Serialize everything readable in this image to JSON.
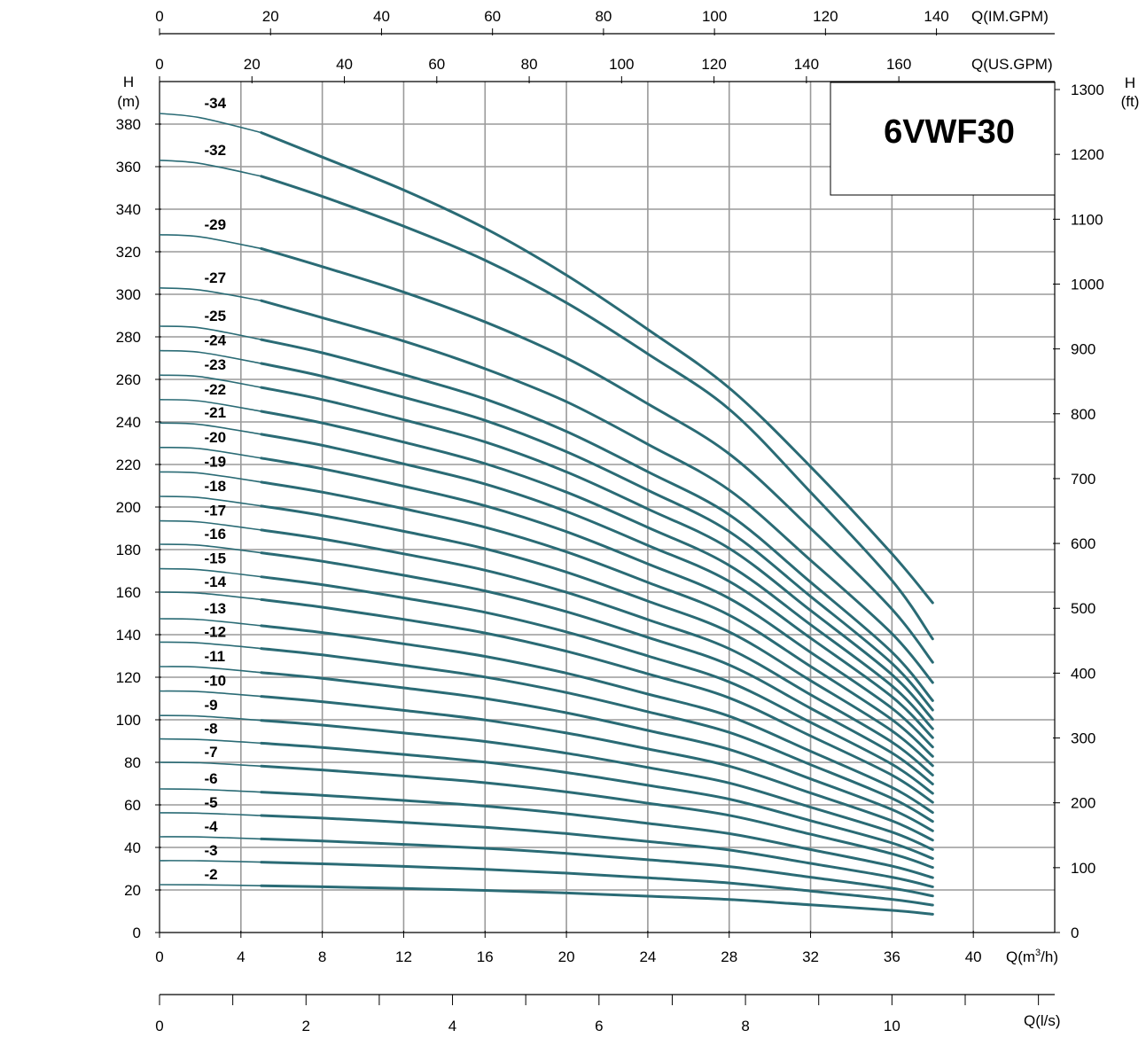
{
  "chart_data": {
    "type": "line",
    "title": "6VWF30",
    "xlabel": "Q(m3/h)",
    "ylabel": "H (m)",
    "ylabel_right": "H (ft)",
    "xlim": [
      0,
      44
    ],
    "ylim": [
      0,
      400
    ],
    "x_ticks": [
      0,
      4,
      8,
      12,
      16,
      20,
      24,
      28,
      32,
      36,
      40
    ],
    "y_ticks": [
      0,
      20,
      40,
      60,
      80,
      100,
      120,
      140,
      160,
      180,
      200,
      220,
      240,
      260,
      280,
      300,
      320,
      340,
      360,
      380
    ],
    "secondary_axes": {
      "right_ft": {
        "label_top": "H",
        "label_bottom": "(ft)",
        "ticks": [
          0,
          100,
          200,
          300,
          400,
          500,
          600,
          700,
          800,
          900,
          1000,
          1100,
          1200,
          1300
        ]
      },
      "top_us_gpm": {
        "label": "Q(US.GPM)",
        "ticks": [
          0,
          20,
          40,
          60,
          80,
          100,
          120,
          140,
          160
        ]
      },
      "top_im_gpm": {
        "label": "Q(IM.GPM)",
        "ticks": [
          0,
          20,
          40,
          60,
          80,
          100,
          120,
          140
        ]
      },
      "bottom_ls": {
        "label": "Q(l/s)",
        "ticks": [
          0,
          2,
          4,
          6,
          8,
          10
        ]
      }
    },
    "grid": true,
    "line_color": "#2a6b75",
    "x": [
      0,
      2,
      5,
      8,
      12,
      16,
      20,
      24,
      28,
      32,
      36,
      38
    ],
    "series": [
      {
        "name": "-2",
        "shutoff": 22.5,
        "values": [
          22.5,
          22.4,
          22.0,
          21.5,
          20.7,
          19.8,
          18.6,
          17.1,
          15.5,
          13.0,
          10.4,
          8.6
        ]
      },
      {
        "name": "-3",
        "shutoff": 33.8,
        "values": [
          33.8,
          33.7,
          33.1,
          32.3,
          31.1,
          29.7,
          27.9,
          25.7,
          23.3,
          19.5,
          15.6,
          12.9
        ]
      },
      {
        "name": "-4",
        "shutoff": 45.0,
        "values": [
          45.0,
          44.9,
          44.0,
          43.0,
          41.4,
          39.6,
          37.2,
          34.2,
          31.0,
          26.0,
          20.8,
          17.2
        ]
      },
      {
        "name": "-5",
        "shutoff": 56.3,
        "values": [
          56.3,
          56.1,
          55.0,
          53.8,
          51.8,
          49.5,
          46.5,
          42.8,
          38.8,
          32.5,
          26.0,
          21.5
        ]
      },
      {
        "name": "-6",
        "shutoff": 67.5,
        "values": [
          67.5,
          67.3,
          66.0,
          64.5,
          62.1,
          59.4,
          55.8,
          51.3,
          46.5,
          39.0,
          31.2,
          25.8
        ]
      },
      {
        "name": "-7",
        "shutoff": 80.0,
        "values": [
          80.0,
          79.8,
          78.2,
          76.4,
          73.6,
          70.4,
          66.1,
          60.8,
          55.1,
          46.2,
          37.0,
          30.6
        ]
      },
      {
        "name": "-8",
        "shutoff": 91.0,
        "values": [
          91.0,
          90.7,
          89.0,
          87.0,
          83.7,
          80.1,
          75.2,
          69.2,
          62.7,
          52.6,
          42.1,
          34.8
        ]
      },
      {
        "name": "-9",
        "shutoff": 102.0,
        "values": [
          102.0,
          101.7,
          99.7,
          97.5,
          93.8,
          89.8,
          84.3,
          77.6,
          70.3,
          58.9,
          47.2,
          39.0
        ]
      },
      {
        "name": "-10",
        "shutoff": 113.5,
        "values": [
          113.5,
          113.2,
          111.0,
          108.5,
          104.4,
          99.9,
          93.8,
          86.3,
          78.2,
          65.6,
          52.5,
          43.4
        ]
      },
      {
        "name": "-11",
        "shutoff": 125.0,
        "values": [
          125.0,
          124.7,
          122.2,
          119.5,
          115.0,
          110.0,
          103.3,
          95.0,
          86.1,
          72.2,
          57.8,
          47.8
        ]
      },
      {
        "name": "-12",
        "shutoff": 136.5,
        "values": [
          136.5,
          136.1,
          133.5,
          130.5,
          125.6,
          120.1,
          112.8,
          103.8,
          94.1,
          78.9,
          63.1,
          52.2
        ]
      },
      {
        "name": "-13",
        "shutoff": 147.5,
        "values": [
          147.5,
          147.1,
          144.2,
          141.0,
          135.7,
          129.8,
          121.9,
          112.1,
          101.7,
          85.2,
          68.2,
          56.4
        ]
      },
      {
        "name": "-14",
        "shutoff": 160.0,
        "values": [
          160.0,
          159.5,
          156.5,
          152.9,
          147.2,
          140.8,
          132.2,
          121.6,
          110.3,
          92.4,
          74.0,
          61.2
        ]
      },
      {
        "name": "-15",
        "shutoff": 171.0,
        "values": [
          171.0,
          170.5,
          167.2,
          163.5,
          157.3,
          150.5,
          141.3,
          130.0,
          117.8,
          98.8,
          79.1,
          65.4
        ]
      },
      {
        "name": "-16",
        "shutoff": 182.5,
        "values": [
          182.5,
          182.0,
          178.5,
          174.5,
          167.9,
          160.6,
          150.8,
          138.7,
          125.8,
          105.4,
          84.4,
          69.8
        ]
      },
      {
        "name": "-17",
        "shutoff": 193.5,
        "values": [
          193.5,
          192.9,
          189.2,
          185.0,
          178.0,
          170.3,
          159.9,
          147.1,
          133.4,
          111.8,
          89.5,
          74.0
        ]
      },
      {
        "name": "-18",
        "shutoff": 205.0,
        "values": [
          205.0,
          204.4,
          200.5,
          196.0,
          188.6,
          180.4,
          169.4,
          155.8,
          141.3,
          118.4,
          94.8,
          78.4
        ]
      },
      {
        "name": "-19",
        "shutoff": 216.5,
        "values": [
          216.5,
          215.9,
          211.7,
          207.0,
          199.2,
          190.5,
          178.9,
          164.6,
          149.2,
          125.1,
          100.1,
          82.8
        ]
      },
      {
        "name": "-20",
        "shutoff": 228.0,
        "values": [
          228.0,
          227.4,
          223.0,
          218.0,
          209.8,
          200.6,
          188.4,
          173.3,
          157.1,
          131.7,
          105.4,
          87.2
        ]
      },
      {
        "name": "-21",
        "shutoff": 239.5,
        "values": [
          239.5,
          238.8,
          234.2,
          229.0,
          220.3,
          210.8,
          197.9,
          182.0,
          165.1,
          138.4,
          110.8,
          91.6
        ]
      },
      {
        "name": "-22",
        "shutoff": 250.5,
        "values": [
          250.5,
          249.8,
          245.0,
          239.5,
          230.5,
          220.4,
          207.0,
          190.4,
          172.6,
          144.7,
          115.9,
          95.8
        ]
      },
      {
        "name": "-23",
        "shutoff": 262.0,
        "values": [
          262.0,
          261.3,
          256.2,
          250.5,
          241.0,
          230.6,
          216.5,
          199.1,
          180.6,
          151.4,
          121.2,
          100.2
        ]
      },
      {
        "name": "-24",
        "shutoff": 273.5,
        "values": [
          273.5,
          272.7,
          267.5,
          261.5,
          251.6,
          240.7,
          226.0,
          207.9,
          188.5,
          158.0,
          126.5,
          104.6
        ]
      },
      {
        "name": "-25",
        "shutoff": 285.0,
        "values": [
          285.0,
          284.2,
          278.7,
          272.5,
          262.2,
          250.8,
          235.5,
          216.6,
          196.4,
          164.7,
          131.8,
          109.0
        ]
      },
      {
        "name": "-27",
        "shutoff": 303.0,
        "values": [
          303.0,
          302.0,
          297.0,
          289.0,
          278.0,
          265.0,
          249.5,
          229.5,
          208.0,
          175.0,
          140.5,
          117.5
        ]
      },
      {
        "name": "-29",
        "shutoff": 328.0,
        "values": [
          328.0,
          327.0,
          321.5,
          313.0,
          301.0,
          287.0,
          270.0,
          248.5,
          225.0,
          190.0,
          152.0,
          127.0
        ]
      },
      {
        "name": "-32",
        "shutoff": 363.0,
        "values": [
          363.0,
          361.5,
          355.5,
          346.0,
          332.0,
          316.0,
          296.0,
          272.0,
          246.0,
          207.0,
          165.5,
          138.0
        ]
      },
      {
        "name": "-34",
        "shutoff": 385.0,
        "values": [
          385.0,
          383.0,
          376.0,
          364.5,
          349.0,
          331.0,
          309.0,
          283.5,
          256.0,
          219.0,
          178.0,
          155.0
        ]
      }
    ]
  }
}
